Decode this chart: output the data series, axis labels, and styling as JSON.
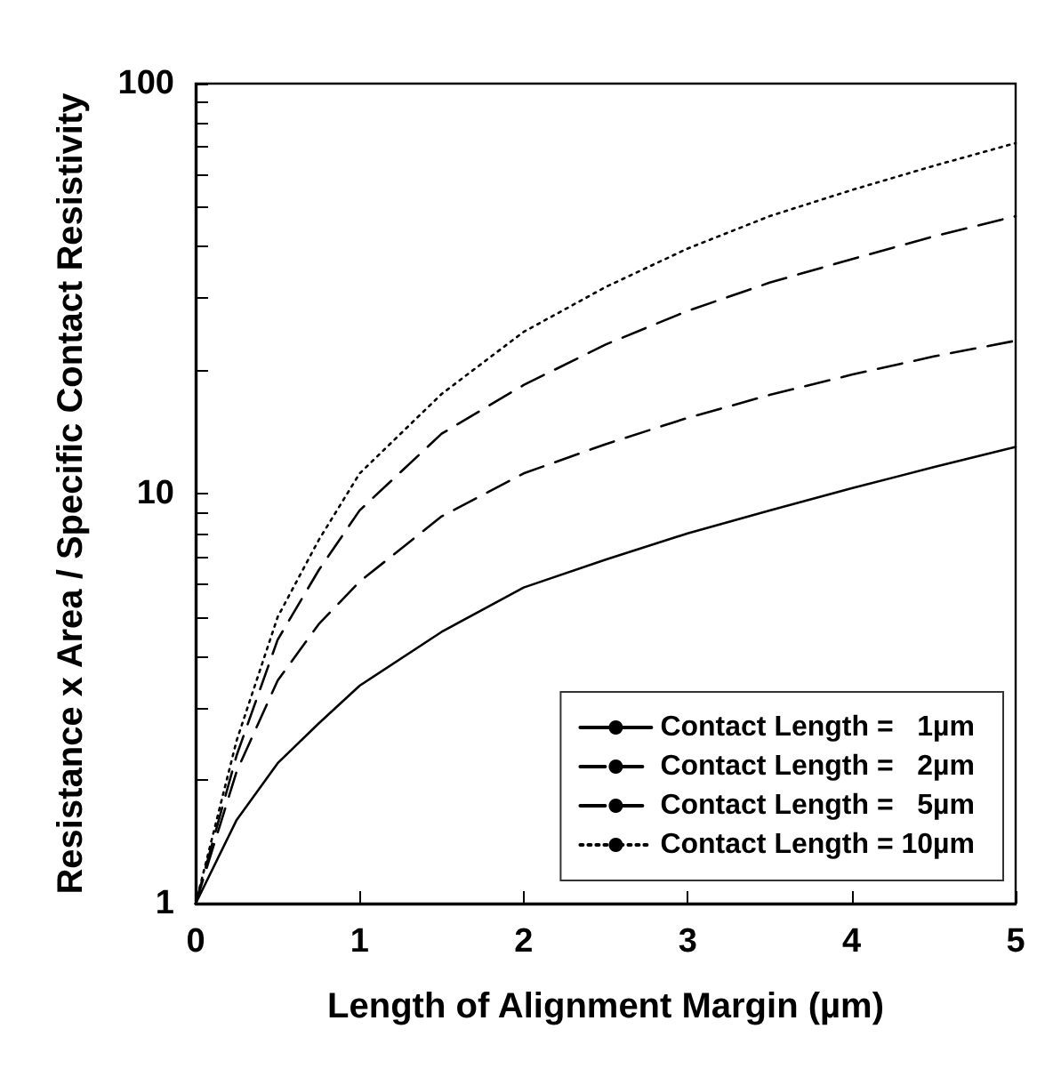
{
  "chart_data": {
    "type": "line",
    "xlabel": "Length of Alignment Margin (µm)",
    "ylabel": "Resistance x Area / Specific Contact Resistivity",
    "x": [
      0,
      0.25,
      0.5,
      0.75,
      1,
      1.5,
      2,
      2.5,
      3,
      3.5,
      4,
      4.5,
      5
    ],
    "series": [
      {
        "name": "Contact Length =   1µm",
        "color": "#000000",
        "line_style": "solid",
        "values": [
          1,
          1.6,
          2.2,
          2.75,
          3.4,
          4.6,
          5.9,
          6.9,
          8.0,
          9.1,
          10.3,
          11.6,
          13.0
        ]
      },
      {
        "name": "Contact Length =   2µm",
        "color": "#000000",
        "line_style": "dashed",
        "values": [
          1,
          2.1,
          3.5,
          4.8,
          6.1,
          8.8,
          11.2,
          13.2,
          15.3,
          17.4,
          19.5,
          21.6,
          23.6
        ]
      },
      {
        "name": "Contact Length =   5µm",
        "color": "#000000",
        "line_style": "dashed",
        "values": [
          1,
          2.3,
          4.4,
          6.5,
          9.1,
          14,
          18.4,
          23.1,
          27.9,
          32.7,
          37.3,
          42.4,
          47.5
        ]
      },
      {
        "name": "Contact Length = 10µm",
        "color": "#000000",
        "line_style": "dotted",
        "values": [
          1,
          2.5,
          5.0,
          7.7,
          11.2,
          17.5,
          24.8,
          31.9,
          39.6,
          47.5,
          55,
          63,
          71.6
        ]
      }
    ],
    "log": "y",
    "xlim": [
      0,
      5
    ],
    "xticks": [
      0,
      1,
      2,
      3,
      4,
      5
    ],
    "ylim": [
      1,
      100
    ],
    "yticks": [
      1,
      {
        "value": 2,
        "label": null
      },
      {
        "value": 3,
        "label": null
      },
      {
        "value": 4,
        "label": null
      },
      {
        "value": 5,
        "label": null
      },
      {
        "value": 6,
        "label": null
      },
      {
        "value": 7,
        "label": null
      },
      {
        "value": 8,
        "label": null
      },
      {
        "value": 9,
        "label": null
      },
      10,
      {
        "value": 20,
        "label": null
      },
      {
        "value": 30,
        "label": null
      },
      {
        "value": 40,
        "label": null
      },
      {
        "value": 50,
        "label": null
      },
      {
        "value": 60,
        "label": null
      },
      {
        "value": 70,
        "label": null
      },
      {
        "value": 80,
        "label": null
      },
      {
        "value": 90,
        "label": null
      },
      100
    ],
    "grid": false,
    "legend": "bottom right",
    "marker": "none"
  }
}
